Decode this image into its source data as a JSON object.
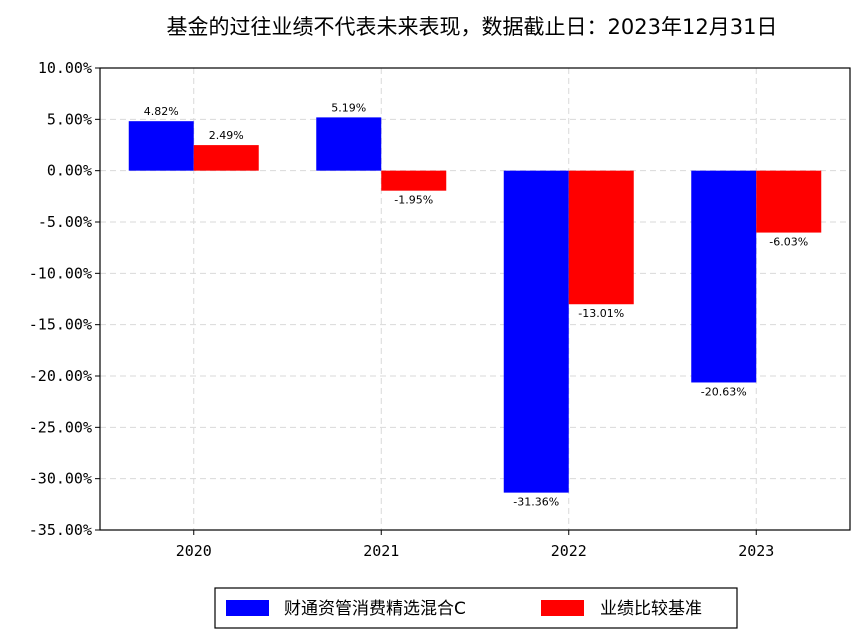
{
  "chart_data": {
    "type": "bar",
    "title": "基金的过往业绩不代表未来表现，数据截止日：2023年12月31日",
    "categories": [
      "2020",
      "2021",
      "2022",
      "2023"
    ],
    "series": [
      {
        "name": "财通资管消费精选混合C",
        "color": "#0000ff",
        "values": [
          4.82,
          5.19,
          -31.36,
          -20.63
        ],
        "labels": [
          "4.82%",
          "5.19%",
          "-31.36%",
          "-20.63%"
        ]
      },
      {
        "name": "业绩比较基准",
        "color": "#ff0000",
        "values": [
          2.49,
          -1.95,
          -13.01,
          -6.03
        ],
        "labels": [
          "2.49%",
          "-1.95%",
          "-13.01%",
          "-6.03%"
        ]
      }
    ],
    "ylim": [
      -35,
      10
    ],
    "yticks": [
      10,
      5,
      0,
      -5,
      -10,
      -15,
      -20,
      -25,
      -30,
      -35
    ],
    "ytick_labels": [
      "10.00%",
      "5.00%",
      "0.00%",
      "-5.00%",
      "-10.00%",
      "-15.00%",
      "-20.00%",
      "-25.00%",
      "-30.00%",
      "-35.00%"
    ],
    "xlabel": "",
    "ylabel": "",
    "grid": true,
    "legend_position": "bottom-center"
  }
}
